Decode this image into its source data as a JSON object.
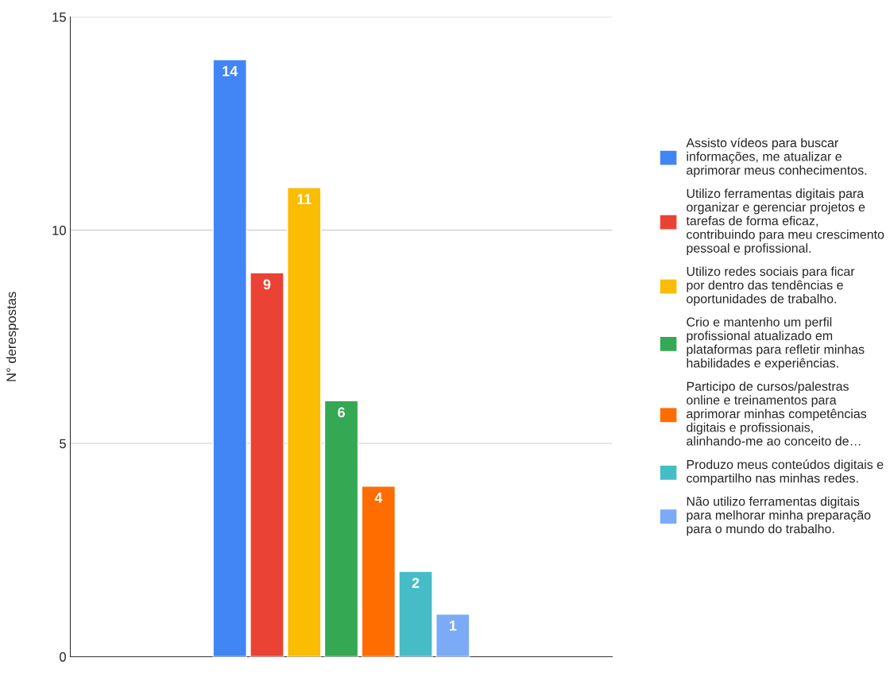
{
  "chart_data": {
    "type": "bar",
    "ylabel": "N° derespostas",
    "categories": [
      null
    ],
    "series": [
      {
        "name": "Assisto vídeos para buscar informações, me atualizar e aprimorar meus conhecimentos.",
        "color": "#4285f4",
        "values": [
          14
        ]
      },
      {
        "name": "Utilizo ferramentas digitais para organizar e gerenciar projetos e tarefas de forma eficaz, contribuindo para meu crescimento pessoal e profissional.",
        "color": "#ea4335",
        "values": [
          9
        ]
      },
      {
        "name": "Utilizo redes sociais para ficar por dentro das tendências e oportunidades de trabalho.",
        "color": "#fbbc04",
        "values": [
          11
        ]
      },
      {
        "name": "Crio e mantenho um perfil profissional atualizado em plataformas para refletir minhas habilidades e experiências.",
        "color": "#34a853",
        "values": [
          6
        ]
      },
      {
        "name": "Participo de cursos/palestras online e treinamentos para aprimorar minhas competências digitais e profissionais, alinhando-me ao conceito de…",
        "color": "#ff6d01",
        "values": [
          4
        ]
      },
      {
        "name": "Produzo meus conteúdos digitais e compartilho nas minhas redes.",
        "color": "#46bdc6",
        "values": [
          2
        ]
      },
      {
        "name": "Não utilizo ferramentas digitais para melhorar minha preparação para o mundo do trabalho.",
        "color": "#7baaf7",
        "values": [
          1
        ]
      }
    ],
    "ylim": [
      0,
      15
    ],
    "yticks": [
      0,
      5,
      10,
      15
    ],
    "grid": "y",
    "legend": "right",
    "data_labels": true
  }
}
